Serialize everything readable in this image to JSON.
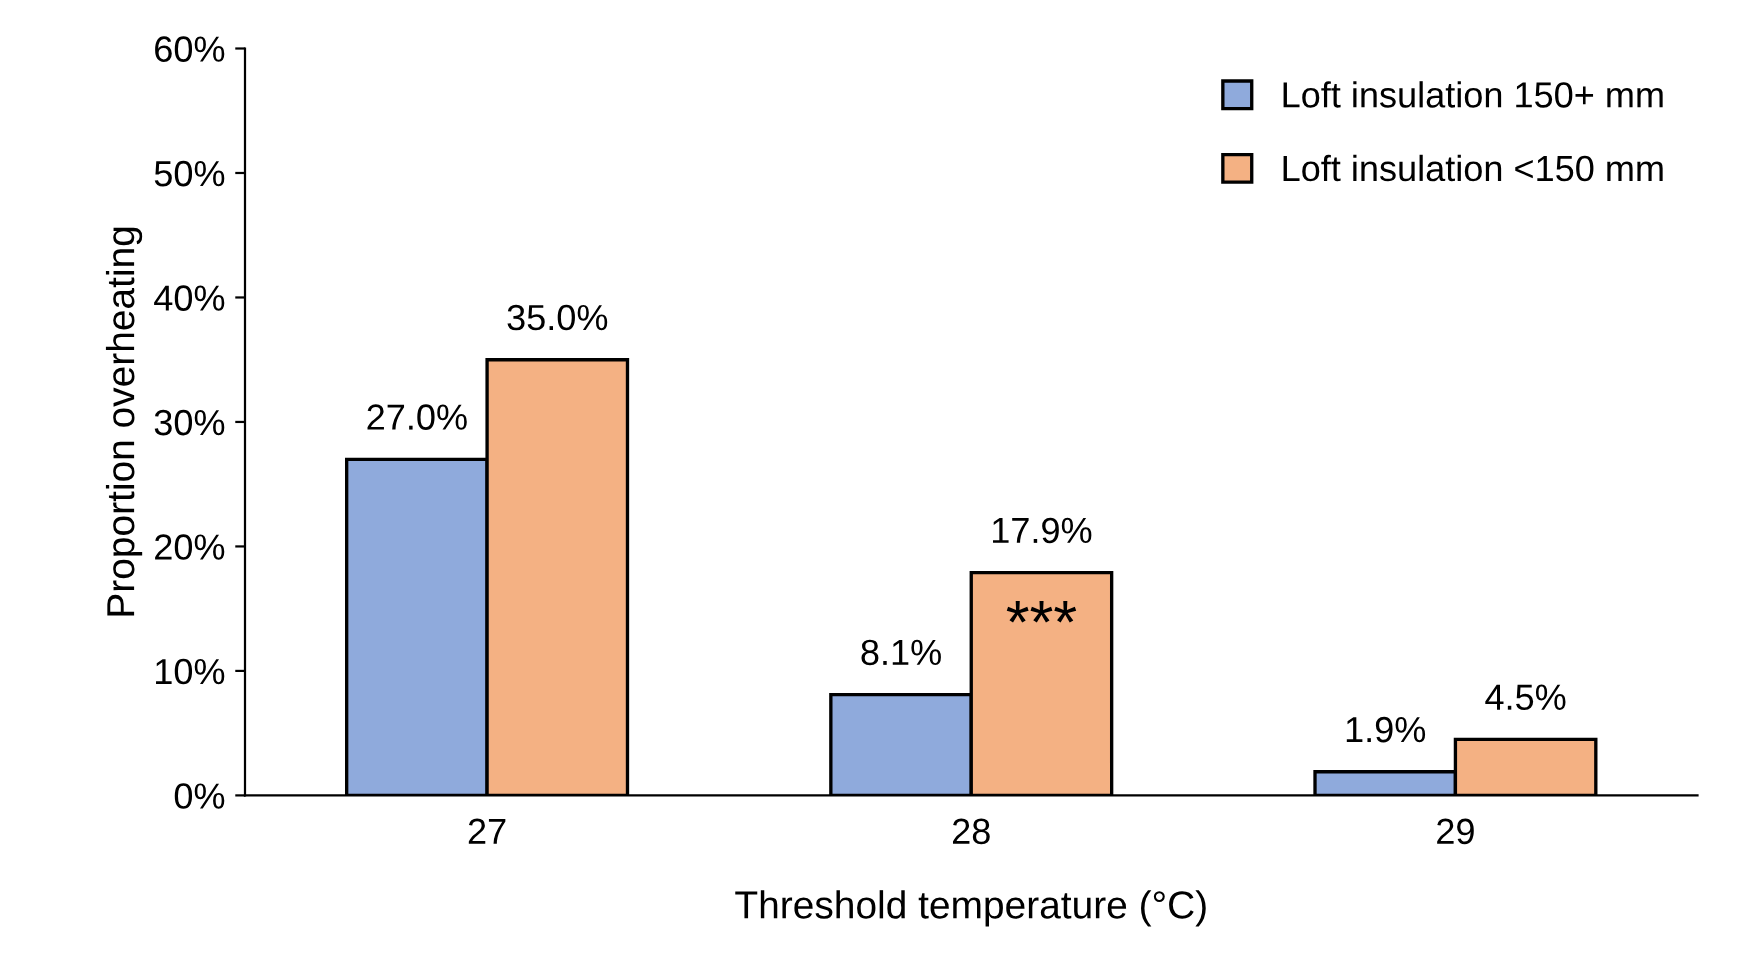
{
  "chart_data": {
    "type": "bar",
    "xlabel": "Threshold temperature (°C)",
    "ylabel": "Proportion overheating",
    "categories": [
      "27",
      "28",
      "29"
    ],
    "series": [
      {
        "name": "Loft insulation 150+ mm",
        "color": "#8faadc",
        "values": [
          27.0,
          8.1,
          1.9
        ],
        "value_labels": [
          "27.0%",
          "8.1%",
          "1.9%"
        ]
      },
      {
        "name": "Loft insulation <150 mm",
        "color": "#f4b183",
        "values": [
          35.0,
          17.9,
          4.5
        ],
        "value_labels": [
          "35.0%",
          "17.9%",
          "4.5%"
        ]
      }
    ],
    "ylim": [
      0,
      60
    ],
    "yticks": [
      {
        "value": 0,
        "label": "0%"
      },
      {
        "value": 10,
        "label": "10%"
      },
      {
        "value": 20,
        "label": "20%"
      },
      {
        "value": 30,
        "label": "30%"
      },
      {
        "value": 40,
        "label": "40%"
      },
      {
        "value": 50,
        "label": "50%"
      },
      {
        "value": 60,
        "label": "60%"
      }
    ],
    "annotations": [
      {
        "text": "***",
        "x": "28",
        "y": 13.5
      }
    ],
    "legend": "top right",
    "grid": false
  }
}
